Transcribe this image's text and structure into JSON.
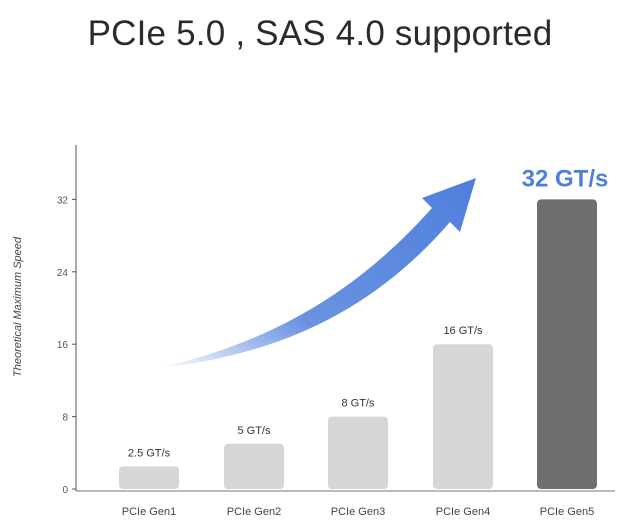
{
  "title": "PCIe 5.0 , SAS 4.0 supported",
  "chart_data": {
    "type": "bar",
    "title": "PCIe 5.0 , SAS 4.0 supported",
    "xlabel": "",
    "ylabel": "Theoretical Maximum Speed",
    "categories": [
      "PCIe Gen1",
      "PCIe Gen2",
      "PCIe Gen3",
      "PCIe Gen4",
      "PCIe Gen5"
    ],
    "values": [
      2.5,
      5,
      8,
      16,
      32
    ],
    "data_labels": [
      "2.5 GT/s",
      "5 GT/s",
      "8 GT/s",
      "16 GT/s",
      "32 GT/s"
    ],
    "yticks": [
      0,
      8,
      16,
      24,
      32
    ],
    "ylim": [
      0,
      38
    ],
    "grid": false,
    "colors": {
      "bar": "#d6d6d6",
      "highlight_bar": "#6f6f6f",
      "highlight_label": "#4f7fdc",
      "arrow": "#4f7fdc"
    },
    "highlight_index": 4
  }
}
